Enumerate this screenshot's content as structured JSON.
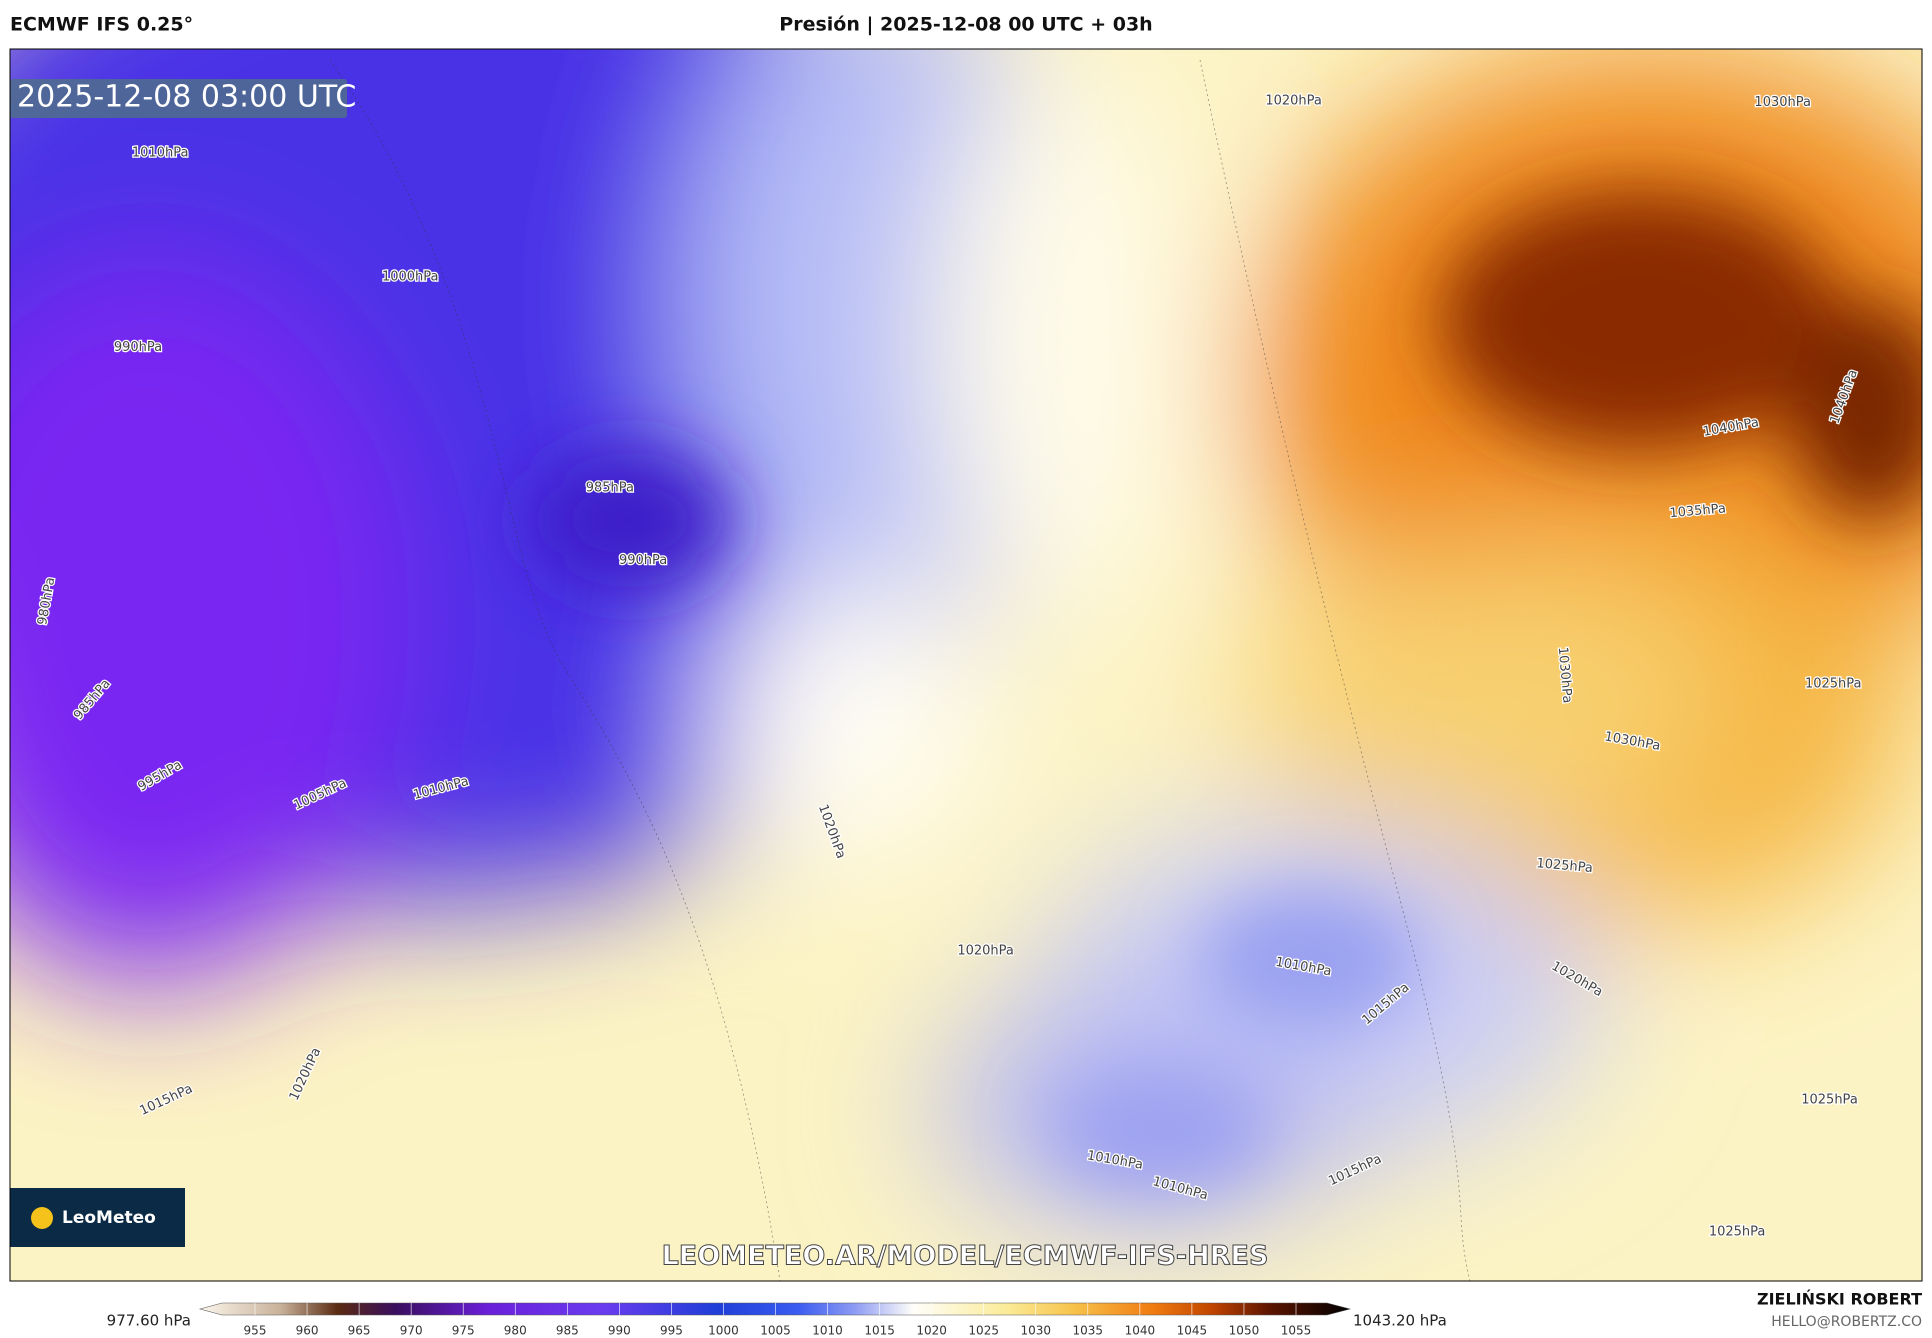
{
  "header": {
    "model": "ECMWF IFS 0.25°",
    "title": "Presión | 2025-12-08 00 UTC + 03h"
  },
  "map": {
    "timestamp": "2025-12-08 03:00 UTC",
    "logo": "LeoMeteo",
    "url": "LEOMETEO.AR/MODEL/ECMWF-IFS-HRES",
    "isobar_labels": [
      "1020hPa",
      "1030hPa",
      "1010hPa",
      "1000hPa",
      "990hPa",
      "985hPa",
      "990hPa",
      "980hPa",
      "985hPa",
      "995hPa",
      "1005hPa",
      "1010hPa",
      "1020hPa",
      "1040hPa",
      "1040hPa",
      "1035hPa",
      "1030hPa",
      "1025hPa",
      "1030hPa",
      "1025hPa",
      "1020hPa",
      "1010hPa",
      "1020hPa",
      "1015hPa",
      "1020hPa",
      "1015hPa",
      "1025hPa",
      "1010hPa",
      "1010hPa",
      "1015hPa",
      "1025hPa"
    ]
  },
  "colorbar": {
    "min_label": "977.60 hPa",
    "max_label": "1043.20 hPa",
    "ticks": [
      955,
      960,
      965,
      970,
      975,
      980,
      985,
      990,
      995,
      1000,
      1005,
      1010,
      1015,
      1020,
      1025,
      1030,
      1035,
      1040,
      1045,
      1050,
      1055
    ]
  },
  "footer": {
    "author": "ZIELIŃSKI ROBERT",
    "email": "HELLO@ROBERTZ.CO"
  }
}
